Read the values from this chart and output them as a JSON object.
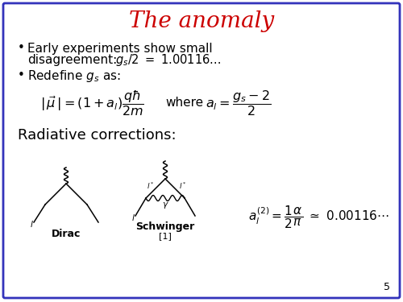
{
  "title": "The anomaly",
  "title_color": "#cc0000",
  "title_fontsize": 20,
  "border_color": "#3333bb",
  "bg_color": "#ffffff",
  "slide_number": "5",
  "dirac_label": "Dirac",
  "schwinger_label": "Schwinger",
  "ref_label": "[1]"
}
